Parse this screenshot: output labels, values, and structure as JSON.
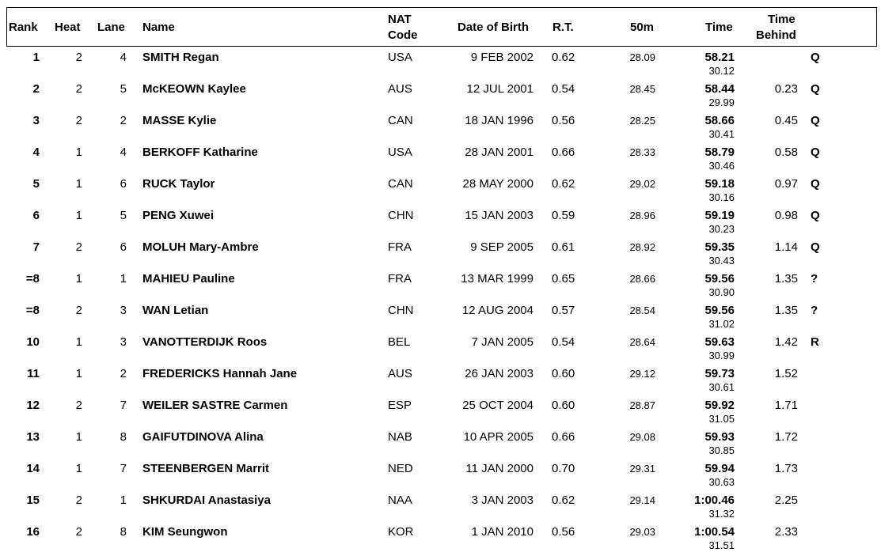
{
  "header": {
    "rank": "Rank",
    "heat": "Heat",
    "lane": "Lane",
    "name": "Name",
    "nat_code_line1": "NAT",
    "nat_code_line2": "Code",
    "dob": "Date of Birth",
    "rt": "R.T.",
    "split50": "50m",
    "time": "Time",
    "behind_line1": "Time",
    "behind_line2": "Behind"
  },
  "rows": [
    {
      "rank": "1",
      "heat": "2",
      "lane": "4",
      "name": "SMITH Regan",
      "nat": "USA",
      "dob": "9 FEB 2002",
      "rt": "0.62",
      "split50": "28.09",
      "time": "58.21",
      "split100": "30.12",
      "behind": "",
      "qual": "Q"
    },
    {
      "rank": "2",
      "heat": "2",
      "lane": "5",
      "name": "McKEOWN Kaylee",
      "nat": "AUS",
      "dob": "12 JUL 2001",
      "rt": "0.54",
      "split50": "28.45",
      "time": "58.44",
      "split100": "29.99",
      "behind": "0.23",
      "qual": "Q"
    },
    {
      "rank": "3",
      "heat": "2",
      "lane": "2",
      "name": "MASSE Kylie",
      "nat": "CAN",
      "dob": "18 JAN 1996",
      "rt": "0.56",
      "split50": "28.25",
      "time": "58.66",
      "split100": "30.41",
      "behind": "0.45",
      "qual": "Q"
    },
    {
      "rank": "4",
      "heat": "1",
      "lane": "4",
      "name": "BERKOFF Katharine",
      "nat": "USA",
      "dob": "28 JAN 2001",
      "rt": "0.66",
      "split50": "28.33",
      "time": "58.79",
      "split100": "30.46",
      "behind": "0.58",
      "qual": "Q"
    },
    {
      "rank": "5",
      "heat": "1",
      "lane": "6",
      "name": "RUCK Taylor",
      "nat": "CAN",
      "dob": "28 MAY 2000",
      "rt": "0.62",
      "split50": "29.02",
      "time": "59.18",
      "split100": "30.16",
      "behind": "0.97",
      "qual": "Q"
    },
    {
      "rank": "6",
      "heat": "1",
      "lane": "5",
      "name": "PENG Xuwei",
      "nat": "CHN",
      "dob": "15 JAN 2003",
      "rt": "0.59",
      "split50": "28.96",
      "time": "59.19",
      "split100": "30.23",
      "behind": "0.98",
      "qual": "Q"
    },
    {
      "rank": "7",
      "heat": "2",
      "lane": "6",
      "name": "MOLUH Mary-Ambre",
      "nat": "FRA",
      "dob": "9 SEP 2005",
      "rt": "0.61",
      "split50": "28.92",
      "time": "59.35",
      "split100": "30.43",
      "behind": "1.14",
      "qual": "Q"
    },
    {
      "rank": "=8",
      "heat": "1",
      "lane": "1",
      "name": "MAHIEU Pauline",
      "nat": "FRA",
      "dob": "13 MAR 1999",
      "rt": "0.65",
      "split50": "28.66",
      "time": "59.56",
      "split100": "30.90",
      "behind": "1.35",
      "qual": "?"
    },
    {
      "rank": "=8",
      "heat": "2",
      "lane": "3",
      "name": "WAN Letian",
      "nat": "CHN",
      "dob": "12 AUG 2004",
      "rt": "0.57",
      "split50": "28.54",
      "time": "59.56",
      "split100": "31.02",
      "behind": "1.35",
      "qual": "?"
    },
    {
      "rank": "10",
      "heat": "1",
      "lane": "3",
      "name": "VANOTTERDIJK Roos",
      "nat": "BEL",
      "dob": "7 JAN 2005",
      "rt": "0.54",
      "split50": "28.64",
      "time": "59.63",
      "split100": "30.99",
      "behind": "1.42",
      "qual": "R"
    },
    {
      "rank": "11",
      "heat": "1",
      "lane": "2",
      "name": "FREDERICKS Hannah Jane",
      "nat": "AUS",
      "dob": "26 JAN 2003",
      "rt": "0.60",
      "split50": "29.12",
      "time": "59.73",
      "split100": "30.61",
      "behind": "1.52",
      "qual": ""
    },
    {
      "rank": "12",
      "heat": "2",
      "lane": "7",
      "name": "WEILER SASTRE Carmen",
      "nat": "ESP",
      "dob": "25 OCT 2004",
      "rt": "0.60",
      "split50": "28.87",
      "time": "59.92",
      "split100": "31.05",
      "behind": "1.71",
      "qual": ""
    },
    {
      "rank": "13",
      "heat": "1",
      "lane": "8",
      "name": "GAIFUTDINOVA Alina",
      "nat": "NAB",
      "dob": "10 APR 2005",
      "rt": "0.66",
      "split50": "29.08",
      "time": "59.93",
      "split100": "30.85",
      "behind": "1.72",
      "qual": ""
    },
    {
      "rank": "14",
      "heat": "1",
      "lane": "7",
      "name": "STEENBERGEN Marrit",
      "nat": "NED",
      "dob": "11 JAN 2000",
      "rt": "0.70",
      "split50": "29.31",
      "time": "59.94",
      "split100": "30.63",
      "behind": "1.73",
      "qual": ""
    },
    {
      "rank": "15",
      "heat": "2",
      "lane": "1",
      "name": "SHKURDAI Anastasiya",
      "nat": "NAA",
      "dob": "3 JAN 2003",
      "rt": "0.62",
      "split50": "29.14",
      "time": "1:00.46",
      "split100": "31.32",
      "behind": "2.25",
      "qual": ""
    },
    {
      "rank": "16",
      "heat": "2",
      "lane": "8",
      "name": "KIM Seungwon",
      "nat": "KOR",
      "dob": "1 JAN 2010",
      "rt": "0.56",
      "split50": "29.03",
      "time": "1:00.54",
      "split100": "31.51",
      "behind": "2.33",
      "qual": ""
    }
  ]
}
